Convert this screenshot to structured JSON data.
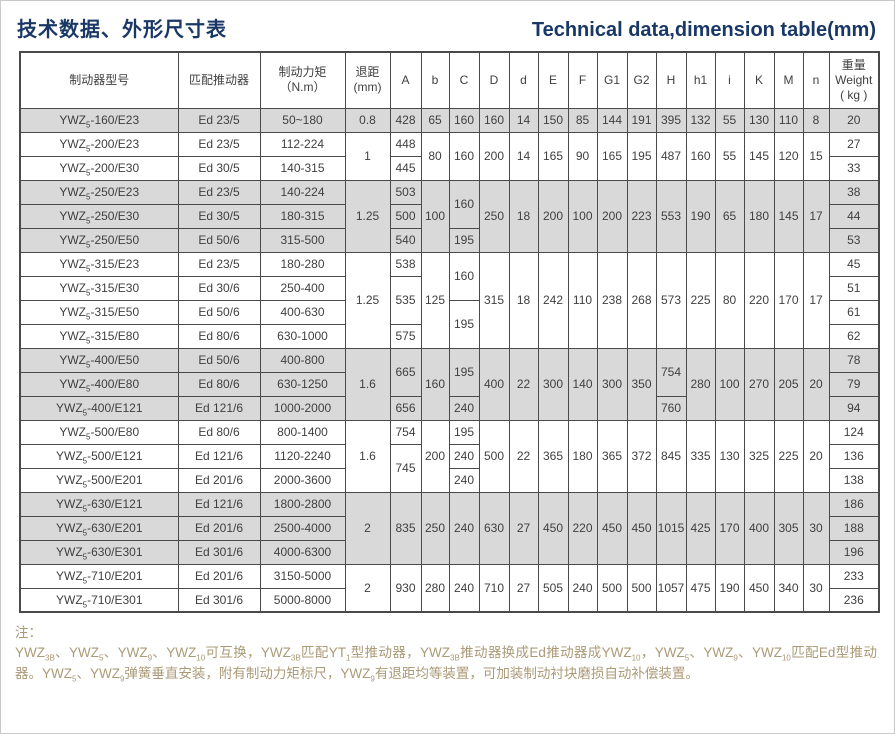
{
  "page": {
    "title_zh": "技术数据、外形尺寸表",
    "title_en": "Technical data,dimension table(mm)"
  },
  "colors": {
    "title_navy": "#1a3866",
    "shaded_row_gray": "#d9d9d9",
    "table_border": "#4a4a4a",
    "notes_tan": "#ab9a77"
  },
  "table": {
    "headers": [
      {
        "id": "model",
        "lines": [
          "制动器型号"
        ]
      },
      {
        "id": "pusher",
        "lines": [
          "匹配推动器"
        ]
      },
      {
        "id": "torque",
        "lines": [
          "制动力矩",
          "（N.m）"
        ]
      },
      {
        "id": "backstroke",
        "lines": [
          "退距",
          "(mm)"
        ]
      },
      {
        "id": "A",
        "lines": [
          "A"
        ]
      },
      {
        "id": "b",
        "lines": [
          "b"
        ]
      },
      {
        "id": "C",
        "lines": [
          "C"
        ]
      },
      {
        "id": "D",
        "lines": [
          "D"
        ]
      },
      {
        "id": "d",
        "lines": [
          "d"
        ]
      },
      {
        "id": "E",
        "lines": [
          "E"
        ]
      },
      {
        "id": "F",
        "lines": [
          "F"
        ]
      },
      {
        "id": "G1",
        "lines": [
          "G1"
        ]
      },
      {
        "id": "G2",
        "lines": [
          "G2"
        ]
      },
      {
        "id": "H",
        "lines": [
          "H"
        ]
      },
      {
        "id": "h1",
        "lines": [
          "h1"
        ]
      },
      {
        "id": "i",
        "lines": [
          "i"
        ]
      },
      {
        "id": "K",
        "lines": [
          "K"
        ]
      },
      {
        "id": "M",
        "lines": [
          "M"
        ]
      },
      {
        "id": "n",
        "lines": [
          "n"
        ]
      },
      {
        "id": "weight",
        "lines": [
          "重量",
          "Weight",
          "( kg )"
        ]
      }
    ],
    "rows": [
      {
        "shade": true,
        "cells": [
          {
            "v": "YWZ_{5}-160/E23"
          },
          {
            "v": "Ed 23/5"
          },
          {
            "v": "50~180"
          },
          {
            "v": "0.8"
          },
          {
            "v": "428"
          },
          {
            "v": "65"
          },
          {
            "v": "160"
          },
          {
            "v": "160"
          },
          {
            "v": "14"
          },
          {
            "v": "150"
          },
          {
            "v": "85"
          },
          {
            "v": "144"
          },
          {
            "v": "191"
          },
          {
            "v": "395"
          },
          {
            "v": "132"
          },
          {
            "v": "55"
          },
          {
            "v": "130"
          },
          {
            "v": "110"
          },
          {
            "v": "8"
          },
          {
            "v": "20"
          }
        ]
      },
      {
        "shade": false,
        "cells": [
          {
            "v": "YWZ_{5}-200/E23"
          },
          {
            "v": "Ed 23/5"
          },
          {
            "v": "112-224"
          },
          {
            "v": "1",
            "rs": 2
          },
          {
            "v": "448"
          },
          {
            "v": "80",
            "rs": 2
          },
          {
            "v": "160",
            "rs": 2
          },
          {
            "v": "200",
            "rs": 2
          },
          {
            "v": "14",
            "rs": 2
          },
          {
            "v": "165",
            "rs": 2
          },
          {
            "v": "90",
            "rs": 2
          },
          {
            "v": "165",
            "rs": 2
          },
          {
            "v": "195",
            "rs": 2
          },
          {
            "v": "487",
            "rs": 2
          },
          {
            "v": "160",
            "rs": 2
          },
          {
            "v": "55",
            "rs": 2
          },
          {
            "v": "145",
            "rs": 2
          },
          {
            "v": "120",
            "rs": 2
          },
          {
            "v": "15",
            "rs": 2
          },
          {
            "v": "27"
          }
        ]
      },
      {
        "shade": false,
        "cells": [
          {
            "v": "YWZ_{5}-200/E30"
          },
          {
            "v": "Ed 30/5"
          },
          {
            "v": "140-315"
          },
          {
            "v": "445"
          },
          {
            "v": "33"
          }
        ]
      },
      {
        "shade": true,
        "cells": [
          {
            "v": "YWZ_{5}-250/E23"
          },
          {
            "v": "Ed 23/5"
          },
          {
            "v": "140-224"
          },
          {
            "v": "1.25",
            "rs": 3
          },
          {
            "v": "503"
          },
          {
            "v": "100",
            "rs": 3
          },
          {
            "v": "160",
            "rs": 2
          },
          {
            "v": "250",
            "rs": 3
          },
          {
            "v": "18",
            "rs": 3
          },
          {
            "v": "200",
            "rs": 3
          },
          {
            "v": "100",
            "rs": 3
          },
          {
            "v": "200",
            "rs": 3
          },
          {
            "v": "223",
            "rs": 3
          },
          {
            "v": "553",
            "rs": 3
          },
          {
            "v": "190",
            "rs": 3
          },
          {
            "v": "65",
            "rs": 3
          },
          {
            "v": "180",
            "rs": 3
          },
          {
            "v": "145",
            "rs": 3
          },
          {
            "v": "17",
            "rs": 3
          },
          {
            "v": "38"
          }
        ]
      },
      {
        "shade": true,
        "cells": [
          {
            "v": "YWZ_{5}-250/E30"
          },
          {
            "v": "Ed 30/5"
          },
          {
            "v": "180-315"
          },
          {
            "v": "500"
          },
          {
            "v": "44"
          }
        ]
      },
      {
        "shade": true,
        "cells": [
          {
            "v": "YWZ_{5}-250/E50"
          },
          {
            "v": "Ed 50/6"
          },
          {
            "v": "315-500"
          },
          {
            "v": "540"
          },
          {
            "v": "195"
          },
          {
            "v": "53"
          }
        ]
      },
      {
        "shade": false,
        "cells": [
          {
            "v": "YWZ_{5}-315/E23"
          },
          {
            "v": "Ed 23/5"
          },
          {
            "v": "180-280"
          },
          {
            "v": "1.25",
            "rs": 4
          },
          {
            "v": "538"
          },
          {
            "v": "125",
            "rs": 4
          },
          {
            "v": "160",
            "rs": 2
          },
          {
            "v": "315",
            "rs": 4
          },
          {
            "v": "18",
            "rs": 4
          },
          {
            "v": "242",
            "rs": 4
          },
          {
            "v": "110",
            "rs": 4
          },
          {
            "v": "238",
            "rs": 4
          },
          {
            "v": "268",
            "rs": 4
          },
          {
            "v": "573",
            "rs": 4
          },
          {
            "v": "225",
            "rs": 4
          },
          {
            "v": "80",
            "rs": 4
          },
          {
            "v": "220",
            "rs": 4
          },
          {
            "v": "170",
            "rs": 4
          },
          {
            "v": "17",
            "rs": 4
          },
          {
            "v": "45"
          }
        ]
      },
      {
        "shade": false,
        "cells": [
          {
            "v": "YWZ_{5}-315/E30"
          },
          {
            "v": "Ed 30/6"
          },
          {
            "v": "250-400"
          },
          {
            "v": "535",
            "rs": 2
          },
          {
            "v": "51"
          }
        ]
      },
      {
        "shade": false,
        "cells": [
          {
            "v": "YWZ_{5}-315/E50"
          },
          {
            "v": "Ed 50/6"
          },
          {
            "v": "400-630"
          },
          {
            "v": "195",
            "rs": 2
          },
          {
            "v": "61"
          }
        ]
      },
      {
        "shade": false,
        "cells": [
          {
            "v": "YWZ_{5}-315/E80"
          },
          {
            "v": "Ed 80/6"
          },
          {
            "v": "630-1000"
          },
          {
            "v": "575"
          },
          {
            "v": "62"
          }
        ]
      },
      {
        "shade": true,
        "cells": [
          {
            "v": "YWZ_{5}-400/E50"
          },
          {
            "v": "Ed 50/6"
          },
          {
            "v": "400-800"
          },
          {
            "v": "1.6",
            "rs": 3
          },
          {
            "v": "665",
            "rs": 2
          },
          {
            "v": "160",
            "rs": 3
          },
          {
            "v": "195",
            "rs": 2
          },
          {
            "v": "400",
            "rs": 3
          },
          {
            "v": "22",
            "rs": 3
          },
          {
            "v": "300",
            "rs": 3
          },
          {
            "v": "140",
            "rs": 3
          },
          {
            "v": "300",
            "rs": 3
          },
          {
            "v": "350",
            "rs": 3
          },
          {
            "v": "754",
            "rs": 2
          },
          {
            "v": "280",
            "rs": 3
          },
          {
            "v": "100",
            "rs": 3
          },
          {
            "v": "270",
            "rs": 3
          },
          {
            "v": "205",
            "rs": 3
          },
          {
            "v": "20",
            "rs": 3
          },
          {
            "v": "78"
          }
        ]
      },
      {
        "shade": true,
        "cells": [
          {
            "v": "YWZ_{5}-400/E80"
          },
          {
            "v": "Ed 80/6"
          },
          {
            "v": "630-1250"
          },
          {
            "v": "79"
          }
        ]
      },
      {
        "shade": true,
        "cells": [
          {
            "v": "YWZ_{5}-400/E121"
          },
          {
            "v": "Ed 121/6"
          },
          {
            "v": "1000-2000"
          },
          {
            "v": "656"
          },
          {
            "v": "240"
          },
          {
            "v": "760"
          },
          {
            "v": "94"
          }
        ]
      },
      {
        "shade": false,
        "cells": [
          {
            "v": "YWZ_{5}-500/E80"
          },
          {
            "v": "Ed 80/6"
          },
          {
            "v": "800-1400"
          },
          {
            "v": "1.6",
            "rs": 3
          },
          {
            "v": "754"
          },
          {
            "v": "200",
            "rs": 3
          },
          {
            "v": "195"
          },
          {
            "v": "500",
            "rs": 3
          },
          {
            "v": "22",
            "rs": 3
          },
          {
            "v": "365",
            "rs": 3
          },
          {
            "v": "180",
            "rs": 3
          },
          {
            "v": "365",
            "rs": 3
          },
          {
            "v": "372",
            "rs": 3
          },
          {
            "v": "845",
            "rs": 3
          },
          {
            "v": "335",
            "rs": 3
          },
          {
            "v": "130",
            "rs": 3
          },
          {
            "v": "325",
            "rs": 3
          },
          {
            "v": "225",
            "rs": 3
          },
          {
            "v": "20",
            "rs": 3
          },
          {
            "v": "124"
          }
        ]
      },
      {
        "shade": false,
        "cells": [
          {
            "v": "YWZ_{5}-500/E121"
          },
          {
            "v": "Ed 121/6"
          },
          {
            "v": "1120-2240"
          },
          {
            "v": "745",
            "rs": 2
          },
          {
            "v": "240"
          },
          {
            "v": "136"
          }
        ]
      },
      {
        "shade": false,
        "cells": [
          {
            "v": "YWZ_{5}-500/E201"
          },
          {
            "v": "Ed 201/6"
          },
          {
            "v": "2000-3600"
          },
          {
            "v": "240"
          },
          {
            "v": "138"
          }
        ]
      },
      {
        "shade": true,
        "cells": [
          {
            "v": "YWZ_{5}-630/E121"
          },
          {
            "v": "Ed 121/6"
          },
          {
            "v": "1800-2800"
          },
          {
            "v": "2",
            "rs": 3
          },
          {
            "v": "835",
            "rs": 3
          },
          {
            "v": "250",
            "rs": 3
          },
          {
            "v": "240",
            "rs": 3
          },
          {
            "v": "630",
            "rs": 3
          },
          {
            "v": "27",
            "rs": 3
          },
          {
            "v": "450",
            "rs": 3
          },
          {
            "v": "220",
            "rs": 3
          },
          {
            "v": "450",
            "rs": 3
          },
          {
            "v": "450",
            "rs": 3
          },
          {
            "v": "1015",
            "rs": 3
          },
          {
            "v": "425",
            "rs": 3
          },
          {
            "v": "170",
            "rs": 3
          },
          {
            "v": "400",
            "rs": 3
          },
          {
            "v": "305",
            "rs": 3
          },
          {
            "v": "30",
            "rs": 3
          },
          {
            "v": "186"
          }
        ]
      },
      {
        "shade": true,
        "cells": [
          {
            "v": "YWZ_{5}-630/E201"
          },
          {
            "v": "Ed 201/6"
          },
          {
            "v": "2500-4000"
          },
          {
            "v": "188"
          }
        ]
      },
      {
        "shade": true,
        "cells": [
          {
            "v": "YWZ_{5}-630/E301"
          },
          {
            "v": "Ed 301/6"
          },
          {
            "v": "4000-6300"
          },
          {
            "v": "196"
          }
        ]
      },
      {
        "shade": false,
        "cells": [
          {
            "v": "YWZ_{5}-710/E201"
          },
          {
            "v": "Ed 201/6"
          },
          {
            "v": "3150-5000"
          },
          {
            "v": "2",
            "rs": 2
          },
          {
            "v": "930",
            "rs": 2
          },
          {
            "v": "280",
            "rs": 2
          },
          {
            "v": "240",
            "rs": 2
          },
          {
            "v": "710",
            "rs": 2
          },
          {
            "v": "27",
            "rs": 2
          },
          {
            "v": "505",
            "rs": 2
          },
          {
            "v": "240",
            "rs": 2
          },
          {
            "v": "500",
            "rs": 2
          },
          {
            "v": "500",
            "rs": 2
          },
          {
            "v": "1057",
            "rs": 2
          },
          {
            "v": "475",
            "rs": 2
          },
          {
            "v": "190",
            "rs": 2
          },
          {
            "v": "450",
            "rs": 2
          },
          {
            "v": "340",
            "rs": 2
          },
          {
            "v": "30",
            "rs": 2
          },
          {
            "v": "233"
          }
        ]
      },
      {
        "shade": false,
        "cells": [
          {
            "v": "YWZ_{5}-710/E301"
          },
          {
            "v": "Ed 301/6"
          },
          {
            "v": "5000-8000"
          },
          {
            "v": "236"
          }
        ]
      }
    ]
  },
  "notes": {
    "label": "注：",
    "body": "YWZ_{3B}、YWZ_{5}、YWZ_{9}、YWZ_{10}可互换，YWZ_{3B}匹配YT_{1}型推动器，YWZ_{3B}推动器换成Ed推动器成YWZ_{10}，YWZ_{5}、YWZ_{9}、YWZ_{10}匹配Ed型推动器。YWZ_{5}、YWZ_{9}弹簧垂直安装，附有制动力矩标尺，YWZ_{9}有退距均等装置，可加装制动衬块磨损自动补偿装置。"
  }
}
